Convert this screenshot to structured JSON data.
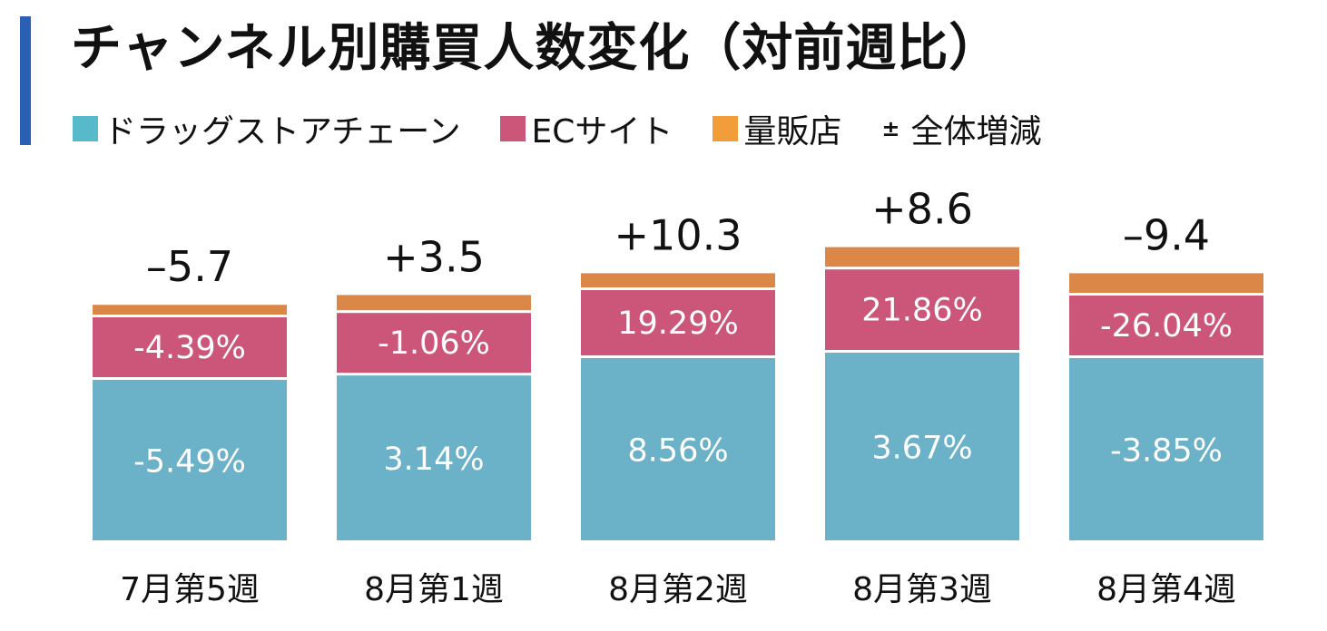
{
  "title": "チャンネル別購買人数変化（対前週比）",
  "legend": {
    "drugstore": "ドラッグストアチェーン",
    "ec": "ECサイト",
    "mass": "量販店",
    "total_symbol": "±",
    "total": "全体増減"
  },
  "colors": {
    "accent": "#2b5fb3",
    "drugstore": "#6bb2c8",
    "drugstore_legend": "#56bacb",
    "ec": "#cb5679",
    "mass": "#db8748"
  },
  "chart_data": {
    "type": "bar",
    "stacked": true,
    "categories": [
      "7月第5週",
      "8月第1週",
      "8月第2週",
      "8月第3週",
      "8月第4週"
    ],
    "series": [
      {
        "name": "ドラッグストアチェーン",
        "key": "drugstore",
        "labels": [
          "-5.49%",
          "3.14%",
          "8.56%",
          "3.67%",
          "-3.85%"
        ]
      },
      {
        "name": "ECサイト",
        "key": "ec",
        "labels": [
          "-4.39%",
          "-1.06%",
          "19.29%",
          "21.86%",
          "-26.04%"
        ]
      },
      {
        "name": "量販店",
        "key": "mass",
        "labels": [
          "",
          "",
          "",
          "",
          ""
        ]
      }
    ],
    "totals": [
      "–5.7",
      "+3.5",
      "+10.3",
      "+8.6",
      "–9.4"
    ],
    "segment_heights": {
      "drugstore": [
        2.95,
        3.03,
        3.35,
        3.45,
        3.35
      ],
      "ec": [
        1.1,
        1.1,
        1.2,
        1.48,
        1.1
      ],
      "mass": [
        0.18,
        0.28,
        0.26,
        0.36,
        0.36
      ]
    }
  }
}
